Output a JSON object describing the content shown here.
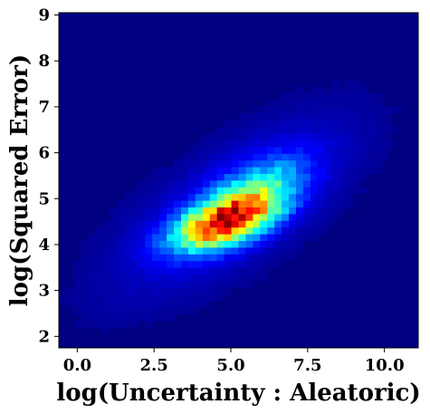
{
  "chart_data": {
    "type": "heatmap",
    "title": "",
    "xlabel": "log(Uncertainty : Aleatoric)",
    "ylabel": "log(Squared Error)",
    "xlim": [
      -0.6,
      11.1
    ],
    "ylim": [
      1.75,
      9.05
    ],
    "x_ticks": [
      0.0,
      2.5,
      5.0,
      7.5,
      10.0
    ],
    "x_tick_labels": [
      "0.0",
      "2.5",
      "5.0",
      "7.5",
      "10.0"
    ],
    "y_ticks": [
      2,
      3,
      4,
      5,
      6,
      7,
      8,
      9
    ],
    "y_tick_labels": [
      "2",
      "3",
      "4",
      "5",
      "6",
      "7",
      "8",
      "9"
    ],
    "colormap": "jet",
    "bins": {
      "nx": 50,
      "ny": 50
    },
    "density": {
      "description_free": true,
      "peak": {
        "x": 4.8,
        "y": 4.55,
        "level": 1.0
      },
      "components": [
        {
          "x": 4.8,
          "y": 4.5,
          "sx": 1.05,
          "sy": 0.38,
          "rho": 0.55,
          "weight": 1.0
        },
        {
          "x": 5.6,
          "y": 5.0,
          "sx": 1.1,
          "sy": 0.55,
          "rho": 0.6,
          "weight": 0.45
        },
        {
          "x": 5.0,
          "y": 4.8,
          "sx": 2.6,
          "sy": 1.3,
          "rho": 0.72,
          "weight": 0.09
        }
      ]
    },
    "grid": false,
    "legend": "none"
  }
}
